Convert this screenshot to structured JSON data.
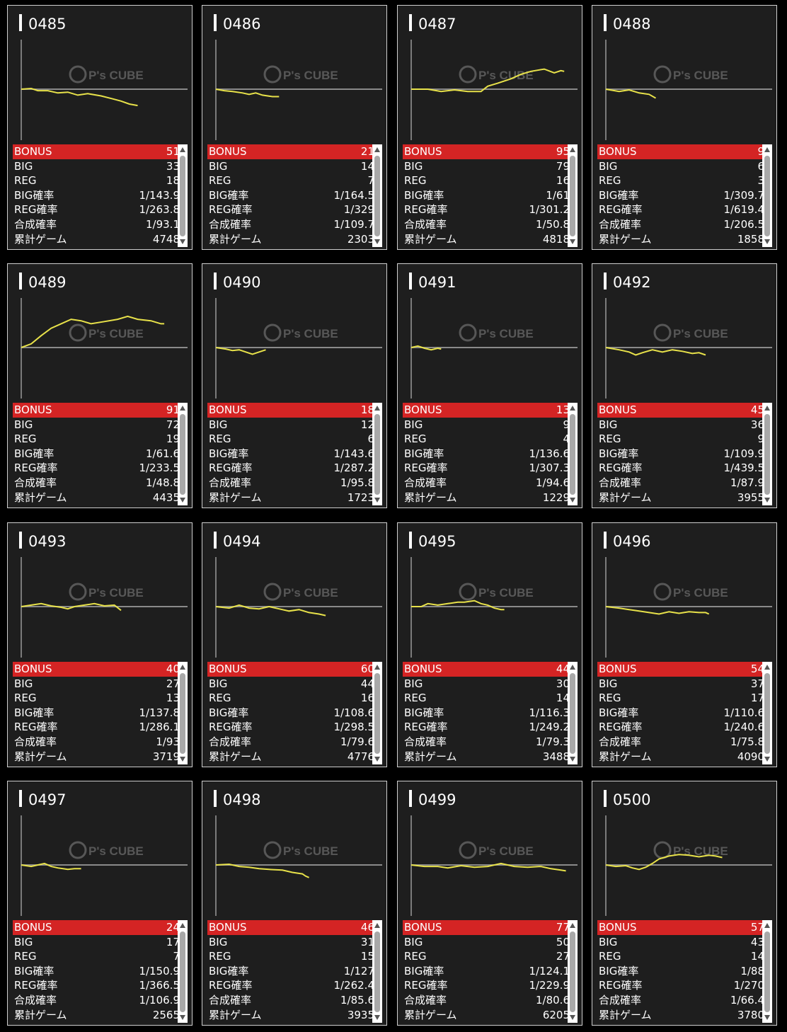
{
  "watermark": {
    "brand": "P's CUBE",
    "icon": "cube-logo-icon"
  },
  "colors": {
    "bonus_row": "#d42424",
    "graph_line": "#e8e24a",
    "baseline": "#8a8a8a",
    "card_bg": "#1e1e1e"
  },
  "machines": [
    {
      "id": "0485",
      "bonus": "51",
      "big": "33",
      "reg": "18",
      "big_rate": "1/143.9",
      "reg_rate": "1/263.8",
      "total_rate": "1/93.1",
      "games": "4748",
      "graph": [
        [
          0,
          0
        ],
        [
          0.06,
          1
        ],
        [
          0.1,
          -2
        ],
        [
          0.16,
          -2
        ],
        [
          0.22,
          -5
        ],
        [
          0.28,
          -4
        ],
        [
          0.34,
          -8
        ],
        [
          0.4,
          -6
        ],
        [
          0.48,
          -9
        ],
        [
          0.55,
          -13
        ],
        [
          0.6,
          -16
        ],
        [
          0.65,
          -20
        ],
        [
          0.7,
          -22
        ]
      ]
    },
    {
      "id": "0486",
      "bonus": "21",
      "big": "14",
      "reg": "7",
      "big_rate": "1/164.5",
      "reg_rate": "1/329",
      "total_rate": "1/109.7",
      "games": "2303",
      "graph": [
        [
          0,
          0
        ],
        [
          0.05,
          -2
        ],
        [
          0.1,
          -3
        ],
        [
          0.16,
          -5
        ],
        [
          0.2,
          -7
        ],
        [
          0.24,
          -5
        ],
        [
          0.28,
          -8
        ],
        [
          0.34,
          -10
        ],
        [
          0.38,
          -10
        ]
      ]
    },
    {
      "id": "0487",
      "bonus": "95",
      "big": "79",
      "reg": "16",
      "big_rate": "1/61",
      "reg_rate": "1/301.2",
      "total_rate": "1/50.8",
      "games": "4818",
      "graph": [
        [
          0,
          0
        ],
        [
          0.1,
          0
        ],
        [
          0.18,
          -3
        ],
        [
          0.26,
          -1
        ],
        [
          0.34,
          -3
        ],
        [
          0.42,
          -3
        ],
        [
          0.46,
          4
        ],
        [
          0.52,
          8
        ],
        [
          0.6,
          14
        ],
        [
          0.66,
          20
        ],
        [
          0.72,
          24
        ],
        [
          0.8,
          27
        ],
        [
          0.86,
          22
        ],
        [
          0.9,
          25
        ],
        [
          0.92,
          24
        ]
      ]
    },
    {
      "id": "0488",
      "bonus": "9",
      "big": "6",
      "reg": "3",
      "big_rate": "1/309.7",
      "reg_rate": "1/619.4",
      "total_rate": "1/206.5",
      "games": "1858",
      "graph": [
        [
          0,
          0
        ],
        [
          0.08,
          -3
        ],
        [
          0.14,
          -1
        ],
        [
          0.2,
          -5
        ],
        [
          0.26,
          -7
        ],
        [
          0.3,
          -12
        ]
      ]
    },
    {
      "id": "0489",
      "bonus": "91",
      "big": "72",
      "reg": "19",
      "big_rate": "1/61.6",
      "reg_rate": "1/233.5",
      "total_rate": "1/48.8",
      "games": "4435",
      "graph": [
        [
          0,
          0
        ],
        [
          0.06,
          5
        ],
        [
          0.12,
          16
        ],
        [
          0.18,
          26
        ],
        [
          0.24,
          32
        ],
        [
          0.3,
          38
        ],
        [
          0.36,
          36
        ],
        [
          0.42,
          32
        ],
        [
          0.5,
          35
        ],
        [
          0.58,
          38
        ],
        [
          0.64,
          42
        ],
        [
          0.7,
          38
        ],
        [
          0.78,
          36
        ],
        [
          0.84,
          32
        ],
        [
          0.86,
          32
        ]
      ]
    },
    {
      "id": "0490",
      "bonus": "18",
      "big": "12",
      "reg": "6",
      "big_rate": "1/143.6",
      "reg_rate": "1/287.2",
      "total_rate": "1/95.8",
      "games": "1723",
      "graph": [
        [
          0,
          0
        ],
        [
          0.06,
          -2
        ],
        [
          0.1,
          -4
        ],
        [
          0.14,
          -3
        ],
        [
          0.18,
          -6
        ],
        [
          0.22,
          -9
        ],
        [
          0.26,
          -6
        ],
        [
          0.3,
          -3
        ]
      ]
    },
    {
      "id": "0491",
      "bonus": "13",
      "big": "9",
      "reg": "4",
      "big_rate": "1/136.6",
      "reg_rate": "1/307.3",
      "total_rate": "1/94.6",
      "games": "1229",
      "graph": [
        [
          0,
          0
        ],
        [
          0.04,
          2
        ],
        [
          0.08,
          -1
        ],
        [
          0.12,
          -3
        ],
        [
          0.16,
          -1
        ],
        [
          0.18,
          -2
        ]
      ]
    },
    {
      "id": "0492",
      "bonus": "45",
      "big": "36",
      "reg": "9",
      "big_rate": "1/109.9",
      "reg_rate": "1/439.5",
      "total_rate": "1/87.9",
      "games": "3955",
      "graph": [
        [
          0,
          0
        ],
        [
          0.08,
          -3
        ],
        [
          0.14,
          -6
        ],
        [
          0.18,
          -10
        ],
        [
          0.22,
          -7
        ],
        [
          0.28,
          -3
        ],
        [
          0.34,
          -6
        ],
        [
          0.4,
          -3
        ],
        [
          0.46,
          -5
        ],
        [
          0.52,
          -8
        ],
        [
          0.56,
          -7
        ],
        [
          0.6,
          -10
        ]
      ]
    },
    {
      "id": "0493",
      "bonus": "40",
      "big": "27",
      "reg": "13",
      "big_rate": "1/137.8",
      "reg_rate": "1/286.1",
      "total_rate": "1/93",
      "games": "3719",
      "graph": [
        [
          0,
          0
        ],
        [
          0.06,
          2
        ],
        [
          0.12,
          4
        ],
        [
          0.18,
          1
        ],
        [
          0.24,
          -1
        ],
        [
          0.28,
          -3
        ],
        [
          0.32,
          0
        ],
        [
          0.38,
          2
        ],
        [
          0.44,
          4
        ],
        [
          0.5,
          1
        ],
        [
          0.56,
          2
        ],
        [
          0.6,
          -5
        ]
      ]
    },
    {
      "id": "0494",
      "bonus": "60",
      "big": "44",
      "reg": "16",
      "big_rate": "1/108.6",
      "reg_rate": "1/298.5",
      "total_rate": "1/79.6",
      "games": "4776",
      "graph": [
        [
          0,
          0
        ],
        [
          0.08,
          -2
        ],
        [
          0.14,
          2
        ],
        [
          0.2,
          -2
        ],
        [
          0.26,
          -3
        ],
        [
          0.32,
          0
        ],
        [
          0.38,
          -3
        ],
        [
          0.44,
          -6
        ],
        [
          0.5,
          -4
        ],
        [
          0.56,
          -8
        ],
        [
          0.62,
          -10
        ],
        [
          0.66,
          -12
        ]
      ]
    },
    {
      "id": "0495",
      "bonus": "44",
      "big": "30",
      "reg": "14",
      "big_rate": "1/116.3",
      "reg_rate": "1/249.2",
      "total_rate": "1/79.3",
      "games": "3488",
      "graph": [
        [
          0,
          0
        ],
        [
          0.06,
          0
        ],
        [
          0.1,
          4
        ],
        [
          0.16,
          2
        ],
        [
          0.22,
          4
        ],
        [
          0.28,
          6
        ],
        [
          0.32,
          6
        ],
        [
          0.38,
          8
        ],
        [
          0.42,
          4
        ],
        [
          0.46,
          2
        ],
        [
          0.5,
          -2
        ],
        [
          0.54,
          -4
        ],
        [
          0.56,
          -4
        ]
      ]
    },
    {
      "id": "0496",
      "bonus": "54",
      "big": "37",
      "reg": "17",
      "big_rate": "1/110.6",
      "reg_rate": "1/240.6",
      "total_rate": "1/75.8",
      "games": "4090",
      "graph": [
        [
          0,
          0
        ],
        [
          0.08,
          -2
        ],
        [
          0.14,
          -4
        ],
        [
          0.2,
          -6
        ],
        [
          0.26,
          -8
        ],
        [
          0.32,
          -10
        ],
        [
          0.38,
          -7
        ],
        [
          0.44,
          -9
        ],
        [
          0.5,
          -7
        ],
        [
          0.56,
          -8
        ],
        [
          0.6,
          -8
        ],
        [
          0.62,
          -10
        ]
      ]
    },
    {
      "id": "0497",
      "bonus": "24",
      "big": "17",
      "reg": "7",
      "big_rate": "1/150.9",
      "reg_rate": "1/366.5",
      "total_rate": "1/106.9",
      "games": "2565",
      "graph": [
        [
          0,
          0
        ],
        [
          0.06,
          -2
        ],
        [
          0.1,
          0
        ],
        [
          0.14,
          2
        ],
        [
          0.18,
          -2
        ],
        [
          0.22,
          -4
        ],
        [
          0.28,
          -6
        ],
        [
          0.32,
          -5
        ],
        [
          0.36,
          -5
        ]
      ]
    },
    {
      "id": "0498",
      "bonus": "46",
      "big": "31",
      "reg": "15",
      "big_rate": "1/127",
      "reg_rate": "1/262.4",
      "total_rate": "1/85.6",
      "games": "3935",
      "graph": [
        [
          0,
          0
        ],
        [
          0.08,
          1
        ],
        [
          0.14,
          -2
        ],
        [
          0.2,
          -3
        ],
        [
          0.26,
          -5
        ],
        [
          0.32,
          -6
        ],
        [
          0.4,
          -7
        ],
        [
          0.46,
          -10
        ],
        [
          0.52,
          -12
        ],
        [
          0.54,
          -15
        ],
        [
          0.56,
          -17
        ]
      ]
    },
    {
      "id": "0499",
      "bonus": "77",
      "big": "50",
      "reg": "27",
      "big_rate": "1/124.1",
      "reg_rate": "1/229.9",
      "total_rate": "1/80.6",
      "games": "6205",
      "graph": [
        [
          0,
          0
        ],
        [
          0.08,
          -2
        ],
        [
          0.16,
          -2
        ],
        [
          0.22,
          -4
        ],
        [
          0.3,
          -1
        ],
        [
          0.38,
          -3
        ],
        [
          0.46,
          -2
        ],
        [
          0.54,
          2
        ],
        [
          0.62,
          -2
        ],
        [
          0.7,
          -3
        ],
        [
          0.78,
          -2
        ],
        [
          0.84,
          -5
        ],
        [
          0.9,
          -7
        ],
        [
          0.93,
          -8
        ]
      ]
    },
    {
      "id": "0500",
      "bonus": "57",
      "big": "43",
      "reg": "14",
      "big_rate": "1/88",
      "reg_rate": "1/270",
      "total_rate": "1/66.4",
      "games": "3780",
      "graph": [
        [
          0,
          0
        ],
        [
          0.06,
          -2
        ],
        [
          0.12,
          -1
        ],
        [
          0.16,
          -4
        ],
        [
          0.2,
          -6
        ],
        [
          0.24,
          -3
        ],
        [
          0.28,
          2
        ],
        [
          0.32,
          8
        ],
        [
          0.38,
          12
        ],
        [
          0.44,
          14
        ],
        [
          0.5,
          13
        ],
        [
          0.56,
          11
        ],
        [
          0.62,
          13
        ],
        [
          0.66,
          12
        ],
        [
          0.7,
          10
        ]
      ]
    }
  ],
  "labels": {
    "bonus": "BONUS",
    "big": "BIG",
    "reg": "REG",
    "big_rate": "BIG確率",
    "reg_rate": "REG確率",
    "total_rate": "合成確率",
    "games": "累計ゲーム"
  }
}
